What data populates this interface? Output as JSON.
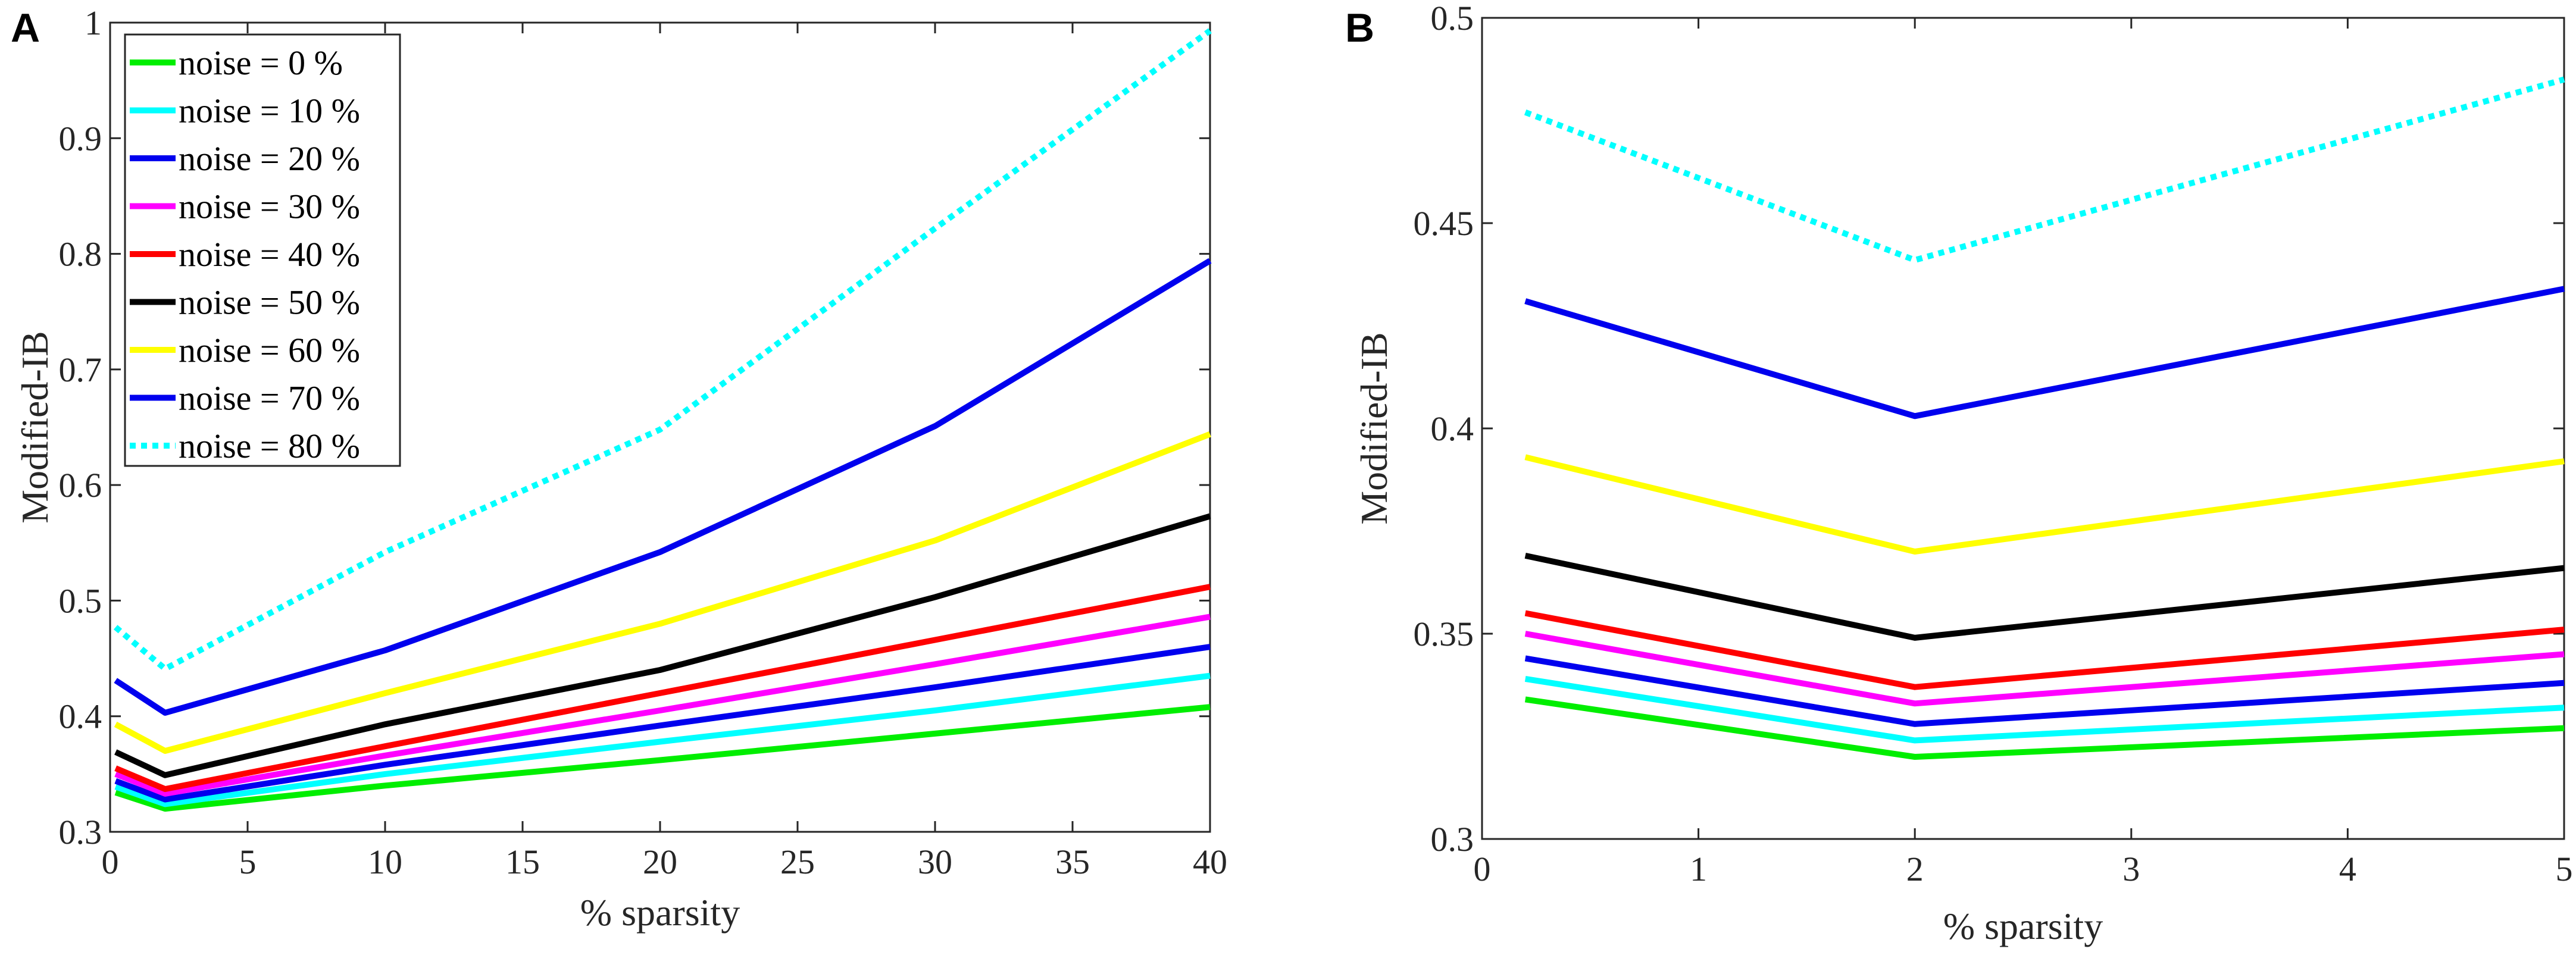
{
  "chart_data": [
    {
      "panel": "A",
      "type": "line",
      "xlabel": "% sparsity",
      "ylabel": "Modified-IB",
      "xlim": [
        0,
        40
      ],
      "ylim": [
        0.3,
        1
      ],
      "xticks": [
        0,
        5,
        10,
        15,
        20,
        25,
        30,
        35,
        40
      ],
      "xtick_labels": [
        "0",
        "5",
        "10",
        "15",
        "20",
        "25",
        "30",
        "35",
        "40"
      ],
      "yticks": [
        0.3,
        0.4,
        0.5,
        0.6,
        0.7,
        0.8,
        0.9,
        1
      ],
      "ytick_labels": [
        "0.3",
        "0.4",
        "0.5",
        "0.6",
        "0.7",
        "0.8",
        "0.9",
        "1"
      ],
      "legend_position": "top-left",
      "x": [
        0.2,
        2,
        10,
        20,
        30,
        40
      ],
      "series": [
        {
          "name": "noise = 0 %",
          "color": "#00ee00",
          "dash": "solid",
          "values": [
            0.334,
            0.32,
            0.34,
            0.362,
            0.385,
            0.408
          ]
        },
        {
          "name": "noise = 10 %",
          "color": "#00ffff",
          "dash": "solid",
          "values": [
            0.339,
            0.324,
            0.35,
            0.378,
            0.405,
            0.435
          ]
        },
        {
          "name": "noise = 20 %",
          "color": "#0000ee",
          "dash": "solid",
          "values": [
            0.344,
            0.328,
            0.358,
            0.392,
            0.425,
            0.46
          ]
        },
        {
          "name": "noise = 30 %",
          "color": "#ff00ff",
          "dash": "solid",
          "values": [
            0.35,
            0.333,
            0.366,
            0.405,
            0.445,
            0.486
          ]
        },
        {
          "name": "noise = 40 %",
          "color": "#ff0000",
          "dash": "solid",
          "values": [
            0.355,
            0.337,
            0.374,
            0.42,
            0.466,
            0.512
          ]
        },
        {
          "name": "noise = 50 %",
          "color": "#000000",
          "dash": "solid",
          "values": [
            0.369,
            0.349,
            0.393,
            0.44,
            0.503,
            0.573
          ]
        },
        {
          "name": "noise = 60 %",
          "color": "#ffff00",
          "dash": "solid",
          "values": [
            0.393,
            0.37,
            0.42,
            0.48,
            0.552,
            0.644
          ]
        },
        {
          "name": "noise = 70 %",
          "color": "#0000ee",
          "dash": "solid",
          "values": [
            0.431,
            0.403,
            0.457,
            0.542,
            0.651,
            0.794
          ]
        },
        {
          "name": "noise = 80 %",
          "color": "#00ffff",
          "dash": "dotted",
          "values": [
            0.477,
            0.441,
            0.542,
            0.648,
            0.822,
            0.993
          ]
        }
      ]
    },
    {
      "panel": "B",
      "type": "line",
      "xlabel": "% sparsity",
      "ylabel": "Modified-IB",
      "xlim": [
        0,
        5
      ],
      "ylim": [
        0.3,
        0.5
      ],
      "xticks": [
        0,
        1,
        2,
        3,
        4,
        5
      ],
      "xtick_labels": [
        "0",
        "1",
        "2",
        "3",
        "4",
        "5"
      ],
      "yticks": [
        0.3,
        0.35,
        0.4,
        0.45,
        0.5
      ],
      "ytick_labels": [
        "0.3",
        "0.35",
        "0.4",
        "0.45",
        "0.5"
      ],
      "x": [
        0.2,
        2,
        5
      ],
      "series": [
        {
          "name": "noise = 0 %",
          "color": "#00ee00",
          "dash": "solid",
          "values": [
            0.334,
            0.32,
            0.327
          ]
        },
        {
          "name": "noise = 10 %",
          "color": "#00ffff",
          "dash": "solid",
          "values": [
            0.339,
            0.324,
            0.332
          ]
        },
        {
          "name": "noise = 20 %",
          "color": "#0000ee",
          "dash": "solid",
          "values": [
            0.344,
            0.328,
            0.338
          ]
        },
        {
          "name": "noise = 30 %",
          "color": "#ff00ff",
          "dash": "solid",
          "values": [
            0.35,
            0.333,
            0.345
          ]
        },
        {
          "name": "noise = 40 %",
          "color": "#ff0000",
          "dash": "solid",
          "values": [
            0.355,
            0.337,
            0.351
          ]
        },
        {
          "name": "noise = 50 %",
          "color": "#000000",
          "dash": "solid",
          "values": [
            0.369,
            0.349,
            0.366
          ]
        },
        {
          "name": "noise = 60 %",
          "color": "#ffff00",
          "dash": "solid",
          "values": [
            0.393,
            0.37,
            0.392
          ]
        },
        {
          "name": "noise = 70 %",
          "color": "#0000ee",
          "dash": "solid",
          "values": [
            0.431,
            0.403,
            0.434
          ]
        },
        {
          "name": "noise = 80 %",
          "color": "#00ffff",
          "dash": "dotted",
          "values": [
            0.477,
            0.441,
            0.485
          ]
        }
      ]
    }
  ]
}
